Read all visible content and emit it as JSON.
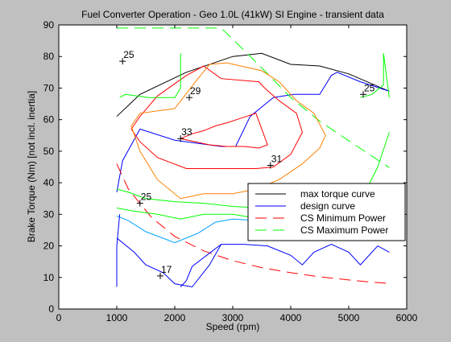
{
  "chart_data": {
    "type": "line",
    "title": "Fuel Converter Operation - Geo 1.0L (41kW) SI Engine - transient data",
    "xlabel": "Speed (rpm)",
    "ylabel": "Brake Torque (Nm) [not incl. inertia]",
    "xlim": [
      0,
      6000
    ],
    "ylim": [
      0,
      90
    ],
    "xticks": [
      0,
      1000,
      2000,
      3000,
      4000,
      5000,
      6000
    ],
    "yticks": [
      0,
      10,
      20,
      30,
      40,
      50,
      60,
      70,
      80,
      90
    ],
    "grid": false,
    "legend_position": "lower-right",
    "colors": {
      "background": "#c0c0c0",
      "plot_area": "#ffffff",
      "max_torque": "#000000",
      "design": "#0000ff",
      "cs_min": "#ff0000",
      "cs_max": "#00ff00",
      "contour_orange": "#ff8000"
    },
    "legend": [
      {
        "label": "max torque curve",
        "color": "#000000",
        "dash": "solid"
      },
      {
        "label": "design curve",
        "color": "#0000ff",
        "dash": "solid"
      },
      {
        "label": "CS Minimum Power",
        "color": "#ff0000",
        "dash": "dashed"
      },
      {
        "label": "CS Maximum Power",
        "color": "#00ff00",
        "dash": "dashed"
      }
    ],
    "series": [
      {
        "name": "max torque curve",
        "color": "#000000",
        "dash": "solid",
        "width": 1,
        "x": [
          1000,
          1400,
          2200,
          3000,
          3500,
          4000,
          4500,
          5000,
          5700
        ],
        "y": [
          61,
          68,
          75,
          80,
          81,
          77.5,
          77,
          74.5,
          69
        ]
      },
      {
        "name": "design curve",
        "color": "#0000ff",
        "dash": "solid",
        "width": 1,
        "x": [
          1000,
          1100,
          1400,
          2000,
          2800,
          3050,
          3300,
          3700,
          4050,
          4500,
          4700,
          4800,
          5200,
          5700
        ],
        "y": [
          37,
          47,
          57,
          53.5,
          51.5,
          51.5,
          61,
          67,
          68,
          68,
          74,
          75,
          72,
          69
        ]
      },
      {
        "name": "CS Minimum Power",
        "color": "#ff0000",
        "dash": "dashed",
        "width": 1,
        "x": [
          1000,
          1200,
          1600,
          2000,
          2500,
          3000,
          3500,
          4000,
          4500,
          5000,
          5400,
          5700
        ],
        "y": [
          46,
          38,
          29,
          23,
          18.4,
          15.3,
          13.1,
          11.5,
          10.2,
          9.2,
          8.5,
          8.1
        ]
      },
      {
        "name": "CS Maximum Power",
        "color": "#00ff00",
        "dash": "dashed",
        "width": 1,
        "x": [
          1000,
          1500,
          2000,
          2500,
          2800,
          3000,
          3500,
          4000,
          4500,
          5000,
          5700
        ],
        "y": [
          89,
          89,
          89,
          89,
          89,
          85.5,
          76.4,
          67,
          59.5,
          53.3,
          44.8
        ]
      },
      {
        "name": "",
        "color": "#ff0000",
        "dash": "solid",
        "width": 1,
        "x": [
          1250,
          1400,
          1700,
          2200,
          2500,
          2800,
          3450,
          3550,
          3800,
          4100,
          4200,
          4000,
          3700,
          3400,
          3200,
          2800,
          2200,
          1700,
          1400,
          1250
        ],
        "y": [
          57,
          61,
          67.5,
          74,
          77,
          73,
          72,
          70,
          66,
          62,
          56,
          49,
          45,
          44.5,
          44.5,
          44.5,
          44.5,
          48,
          53,
          57
        ]
      },
      {
        "name": "",
        "color": "#ff8000",
        "dash": "solid",
        "width": 1,
        "x": [
          1250,
          1400,
          2000,
          2400,
          2600,
          2900,
          3500,
          3800,
          4100,
          4400,
          4600,
          4500,
          4200,
          3800,
          3400,
          3000,
          2500,
          2100,
          1700,
          1400,
          1250
        ],
        "y": [
          58,
          62,
          63.5,
          73,
          77.5,
          78,
          75.5,
          72,
          66,
          62,
          55,
          51,
          46,
          41,
          38,
          36.5,
          36.5,
          35,
          41,
          50,
          58
        ]
      },
      {
        "name": "",
        "color": "#ff0000",
        "dash": "solid",
        "width": 1,
        "x": [
          2100,
          2300,
          2500,
          2700,
          2900,
          3150,
          3400,
          3600,
          3450,
          3200,
          2900,
          2600,
          2350,
          2100
        ],
        "y": [
          54,
          55.5,
          56.5,
          58,
          59,
          60.5,
          62,
          52,
          51,
          51.5,
          51.5,
          52,
          53,
          54
        ]
      },
      {
        "name": "",
        "color": "#00ff00",
        "dash": "solid",
        "width": 1,
        "x": [
          1000,
          1200,
          1500,
          2000,
          2500,
          3000,
          3500,
          3800,
          4200,
          4800,
          5300,
          5700
        ],
        "y": [
          38,
          37,
          35,
          34,
          33.5,
          32.5,
          32,
          32,
          33,
          33,
          32,
          33
        ]
      },
      {
        "name": "",
        "color": "#00ff00",
        "dash": "solid",
        "width": 1,
        "x": [
          1000,
          1300,
          1700,
          2100,
          2500,
          3000,
          3500,
          3900,
          4500,
          5200,
          5600
        ],
        "y": [
          32,
          31,
          30,
          28.5,
          30,
          30,
          28.5,
          26.5,
          26,
          27,
          30
        ]
      },
      {
        "name": "",
        "color": "#00ff00",
        "dash": "solid",
        "width": 1,
        "x": [
          1050,
          1150,
          1550,
          2000,
          2100,
          2100
        ],
        "y": [
          67,
          68,
          67,
          67,
          70,
          81
        ]
      },
      {
        "name": "",
        "color": "#00ff00",
        "dash": "solid",
        "width": 1,
        "x": [
          5200,
          5400,
          5600,
          5600,
          5700
        ],
        "y": [
          67,
          68,
          71,
          81,
          67
        ]
      },
      {
        "name": "",
        "color": "#00ff00",
        "dash": "solid",
        "width": 1,
        "x": [
          5000,
          5200,
          5500,
          5700
        ],
        "y": [
          28,
          34,
          45,
          56
        ]
      },
      {
        "name": "",
        "color": "#00a0ff",
        "dash": "solid",
        "width": 1,
        "x": [
          1000,
          1200,
          1500,
          2000,
          2400,
          2700,
          3000,
          3500,
          3800
        ],
        "y": [
          29.5,
          28,
          24.5,
          21,
          24,
          27.5,
          28.5,
          28,
          26
        ]
      },
      {
        "name": "",
        "color": "#0000ff",
        "dash": "solid",
        "width": 1,
        "x": [
          1000,
          1300,
          1500,
          1800,
          2000,
          2300,
          2600,
          2800,
          3200,
          3600,
          4000,
          4200,
          4400,
          4700,
          5000,
          5200,
          5500,
          5700
        ],
        "y": [
          22.5,
          18,
          14,
          11.5,
          8,
          7,
          14,
          20.5,
          20.5,
          20,
          17,
          14,
          18,
          20.5,
          18,
          14,
          20,
          18
        ]
      },
      {
        "name": "",
        "color": "#0000ff",
        "dash": "solid",
        "width": 1,
        "x": [
          1000,
          1000,
          1050
        ],
        "y": [
          7,
          20,
          30
        ]
      },
      {
        "name": "",
        "color": "#0000ff",
        "dash": "solid",
        "width": 1,
        "x": [
          2100,
          2200,
          2300,
          2550,
          2800
        ],
        "y": [
          7,
          9,
          13.5,
          17,
          20.5
        ]
      }
    ],
    "annotations": [
      {
        "text": "25",
        "x": 1100,
        "y": 78.5
      },
      {
        "text": "29",
        "x": 2250,
        "y": 67
      },
      {
        "text": "33",
        "x": 2100,
        "y": 54
      },
      {
        "text": "31",
        "x": 3650,
        "y": 45.5
      },
      {
        "text": "25",
        "x": 5250,
        "y": 68
      },
      {
        "text": "25",
        "x": 1400,
        "y": 33.5
      },
      {
        "text": "17",
        "x": 1750,
        "y": 10.5
      }
    ]
  }
}
